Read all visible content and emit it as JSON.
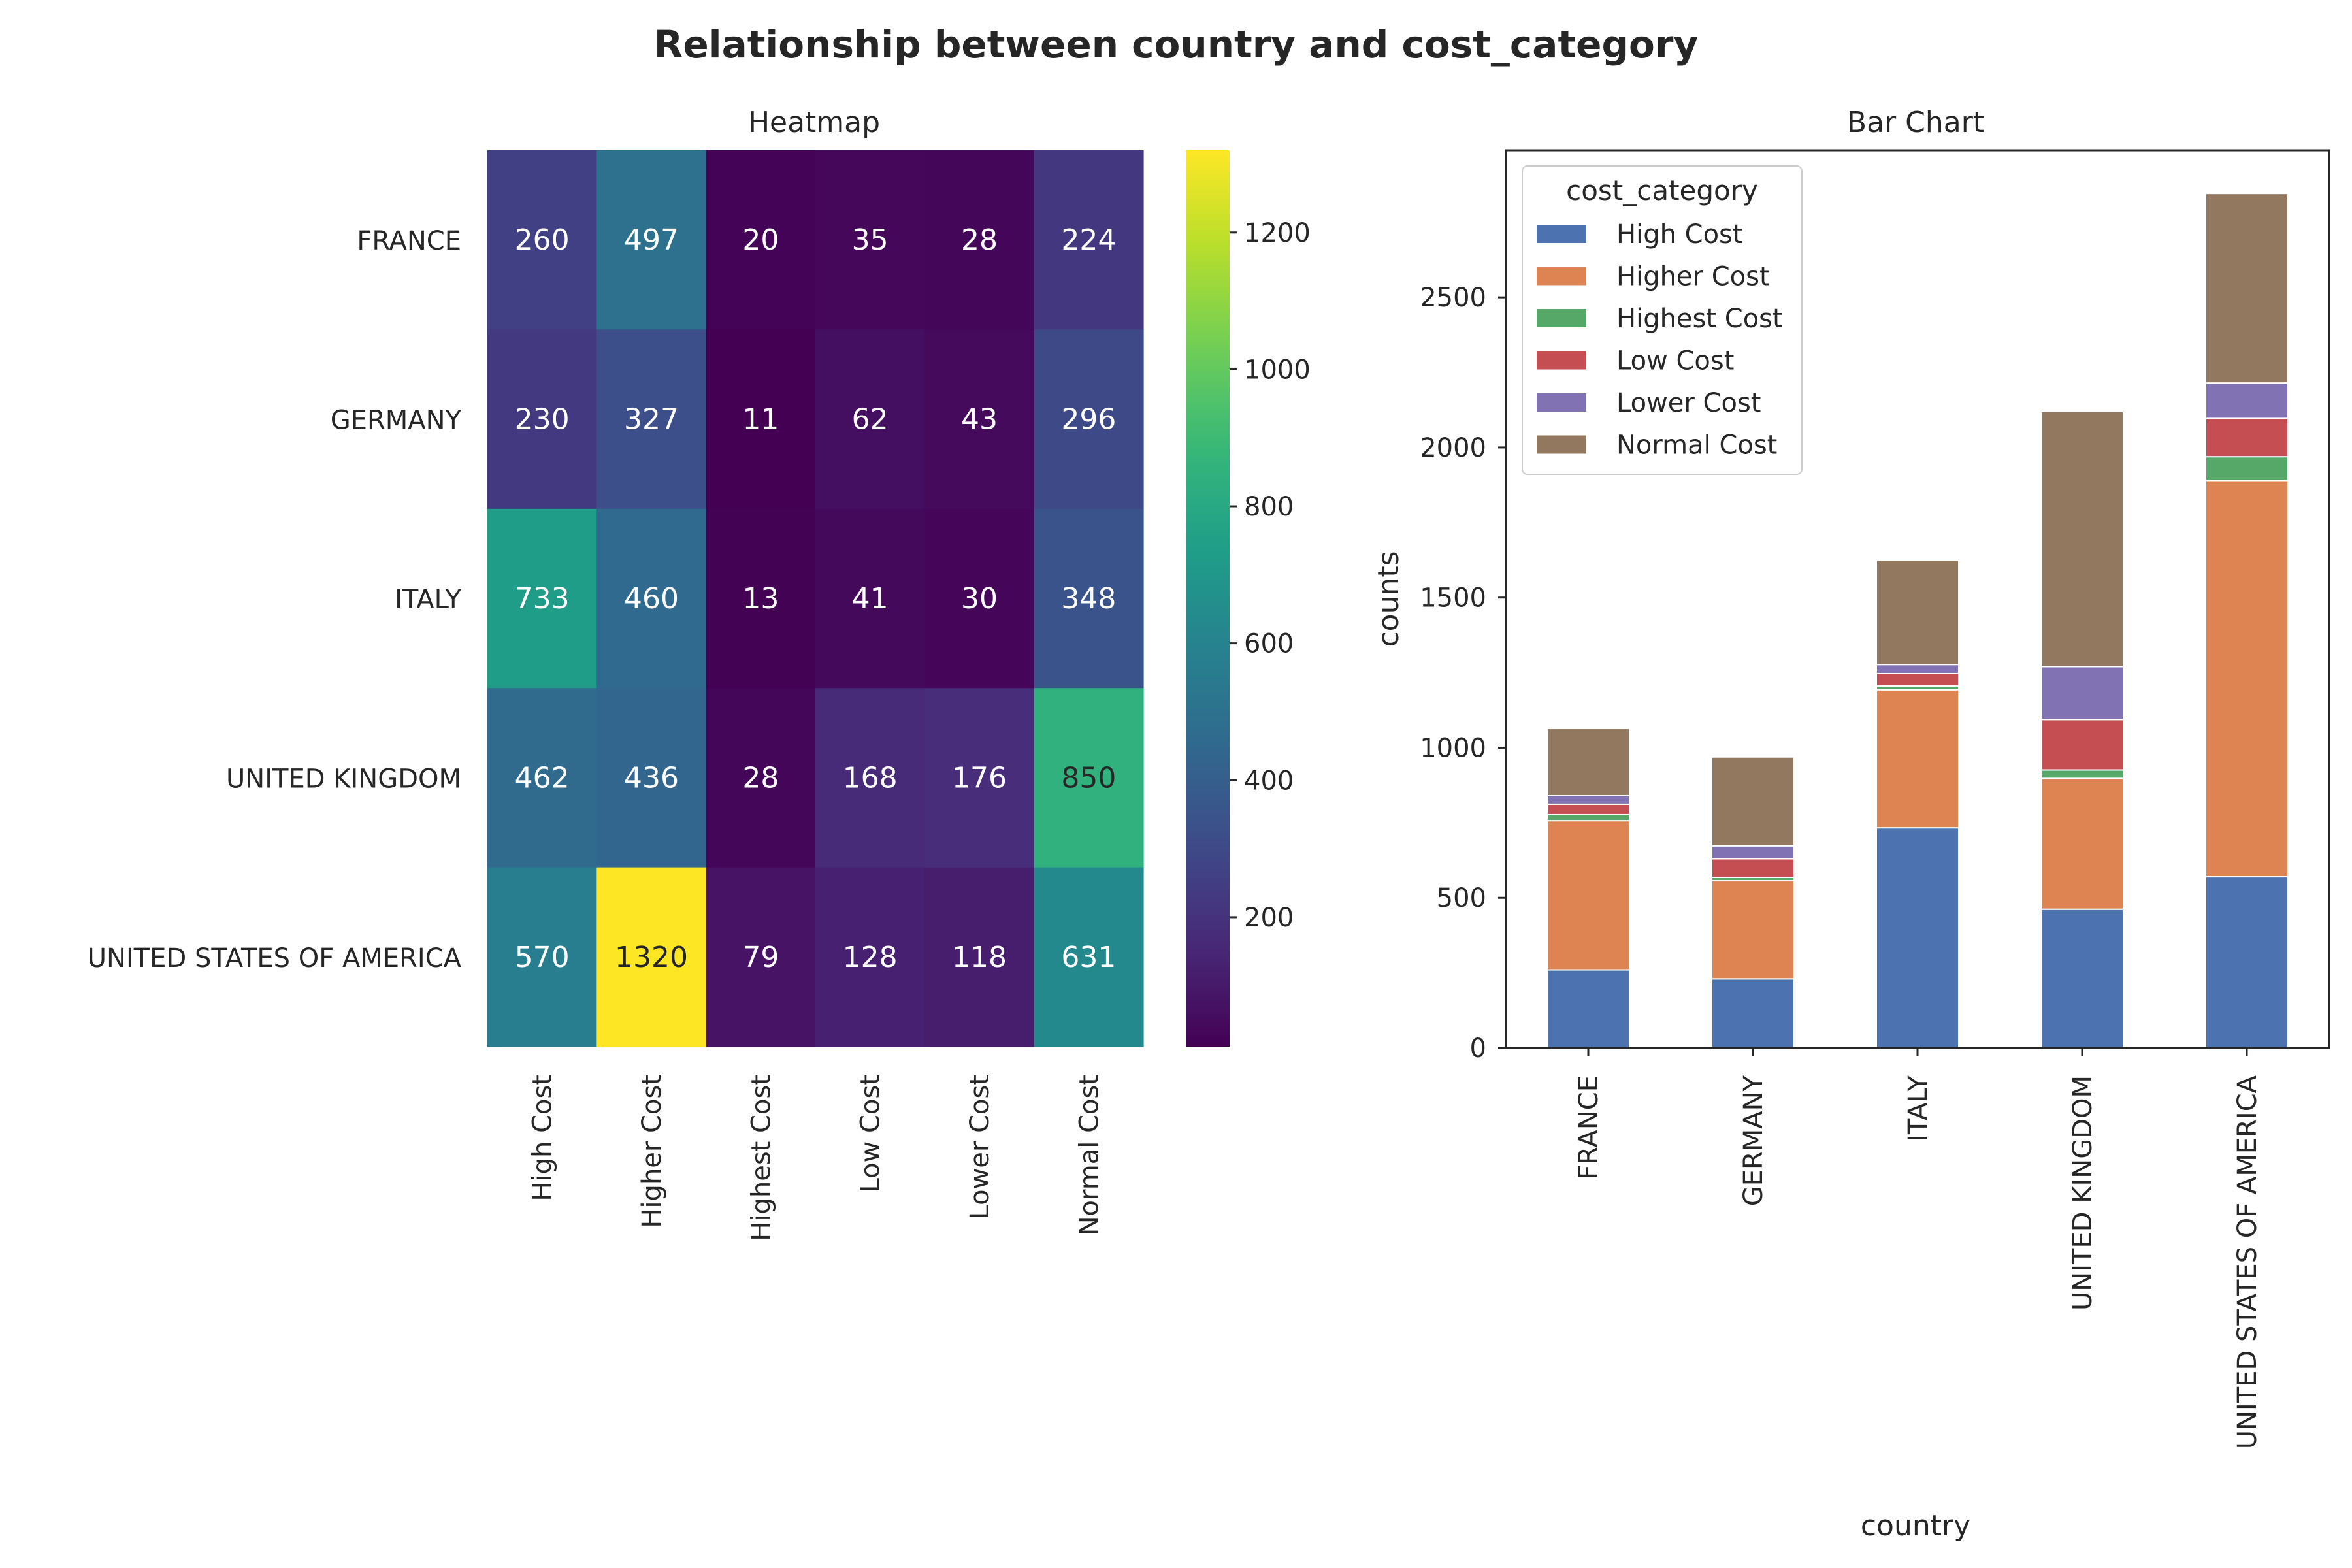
{
  "figure": {
    "title": "Relationship between country and cost_category"
  },
  "chart_data": [
    {
      "type": "heatmap",
      "title": "Heatmap",
      "rows": [
        "FRANCE",
        "GERMANY",
        "ITALY",
        "UNITED KINGDOM",
        "UNITED STATES OF AMERICA"
      ],
      "columns": [
        "High Cost",
        "Higher Cost",
        "Highest Cost",
        "Low Cost",
        "Lower Cost",
        "Normal Cost"
      ],
      "values": [
        [
          260,
          497,
          20,
          35,
          28,
          224
        ],
        [
          230,
          327,
          11,
          62,
          43,
          296
        ],
        [
          733,
          460,
          13,
          41,
          30,
          348
        ],
        [
          462,
          436,
          28,
          168,
          176,
          850
        ],
        [
          570,
          1320,
          79,
          128,
          118,
          631
        ]
      ],
      "colormap": "viridis",
      "vmin": 11,
      "vmax": 1320,
      "colorbar_ticks": [
        200,
        400,
        600,
        800,
        1000,
        1200
      ]
    },
    {
      "type": "bar",
      "stacked": true,
      "title": "Bar Chart",
      "xlabel": "country",
      "ylabel": "counts",
      "categories": [
        "FRANCE",
        "GERMANY",
        "ITALY",
        "UNITED KINGDOM",
        "UNITED STATES OF AMERICA"
      ],
      "series": [
        {
          "name": "High Cost",
          "color": "#4c72b0",
          "values": [
            260,
            230,
            733,
            462,
            570
          ]
        },
        {
          "name": "Higher Cost",
          "color": "#dd8452",
          "values": [
            497,
            327,
            460,
            436,
            1320
          ]
        },
        {
          "name": "Highest Cost",
          "color": "#55a868",
          "values": [
            20,
            11,
            13,
            28,
            79
          ]
        },
        {
          "name": "Low Cost",
          "color": "#c44e52",
          "values": [
            35,
            62,
            41,
            168,
            128
          ]
        },
        {
          "name": "Lower Cost",
          "color": "#8172b3",
          "values": [
            28,
            43,
            30,
            176,
            118
          ]
        },
        {
          "name": "Normal Cost",
          "color": "#937860",
          "values": [
            224,
            296,
            348,
            850,
            631
          ]
        }
      ],
      "ylim": [
        0,
        2990
      ],
      "yticks": [
        0,
        500,
        1000,
        1500,
        2000,
        2500
      ],
      "legend": {
        "title": "cost_category",
        "placement": "top-left"
      },
      "grid": false
    }
  ]
}
